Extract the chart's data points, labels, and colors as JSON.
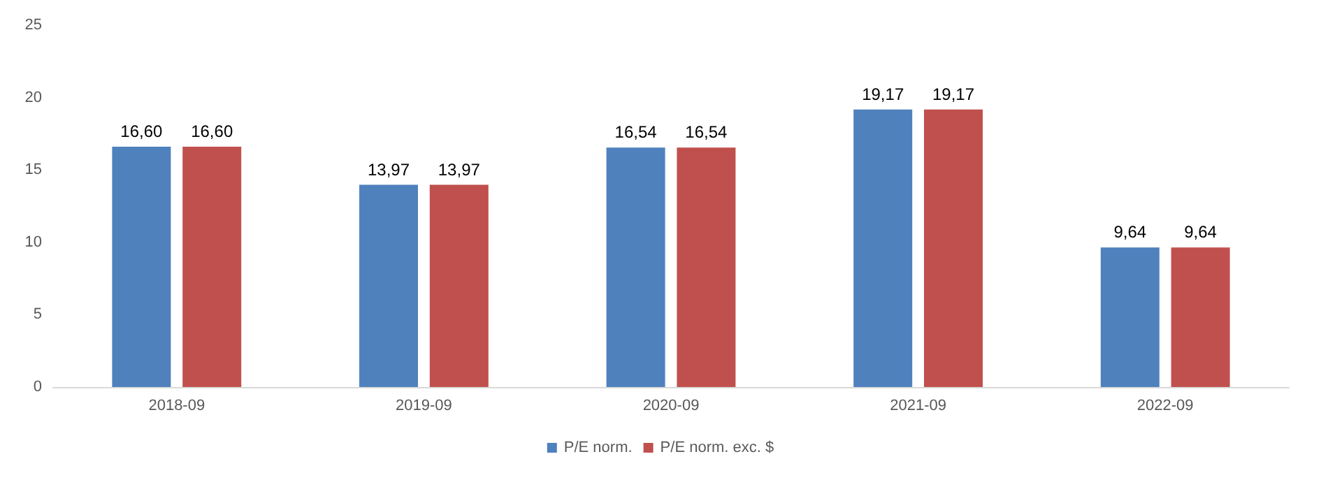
{
  "chart_data": {
    "type": "bar",
    "categories": [
      "2018-09",
      "2019-09",
      "2020-09",
      "2021-09",
      "2022-09"
    ],
    "series": [
      {
        "name": "P/E norm.",
        "color": "#4f81bd",
        "values": [
          16.6,
          13.97,
          16.54,
          19.17,
          9.64
        ],
        "value_labels": [
          "16,60",
          "13,97",
          "16,54",
          "19,17",
          "9,64"
        ]
      },
      {
        "name": "P/E norm. exc. $",
        "color": "#c0504d",
        "values": [
          16.6,
          13.97,
          16.54,
          19.17,
          9.64
        ],
        "value_labels": [
          "16,60",
          "13,97",
          "16,54",
          "19,17",
          "9,64"
        ]
      }
    ],
    "ylim": [
      0,
      25
    ],
    "yticks": [
      0,
      5,
      10,
      15,
      20,
      25
    ],
    "grid": false,
    "legend": "bottom"
  }
}
